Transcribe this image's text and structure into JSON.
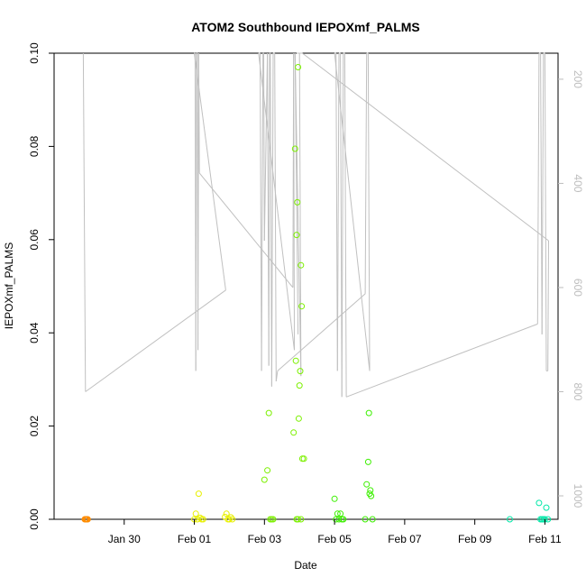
{
  "chart_data": {
    "type": "scatter",
    "title": "ATOM2 Southbound IEPOXmf_PALMS",
    "xlabel": "Date",
    "ylabel": "IEPOXmf_PALMS",
    "xlim": [
      "2017-01-28T00:00",
      "2017-02-11T09:00"
    ],
    "ylim": [
      0,
      0.1
    ],
    "x_ticks": [
      {
        "label": "Jan 30",
        "value": "2017-01-30T00:00"
      },
      {
        "label": "Feb 01",
        "value": "2017-02-01T00:00"
      },
      {
        "label": "Feb 03",
        "value": "2017-02-03T00:00"
      },
      {
        "label": "Feb 05",
        "value": "2017-02-05T00:00"
      },
      {
        "label": "Feb 07",
        "value": "2017-02-07T00:00"
      },
      {
        "label": "Feb 09",
        "value": "2017-02-09T00:00"
      },
      {
        "label": "Feb 11",
        "value": "2017-02-11T00:00"
      }
    ],
    "y_ticks": [
      {
        "label": "0.00",
        "value": 0
      },
      {
        "label": "0.02",
        "value": 0.02
      },
      {
        "label": "0.04",
        "value": 0.04
      },
      {
        "label": "0.06",
        "value": 0.06
      },
      {
        "label": "0.08",
        "value": 0.08
      },
      {
        "label": "0.10",
        "value": 0.1
      }
    ],
    "y2_ticks": [
      {
        "label": "200",
        "value": 200
      },
      {
        "label": "400",
        "value": 400
      },
      {
        "label": "600",
        "value": 600
      },
      {
        "label": "800",
        "value": 800
      },
      {
        "label": "1000",
        "value": 1000
      }
    ],
    "y2lim": [
      1045,
      150
    ],
    "grid": false,
    "series": [
      {
        "color": "#ff8c00",
        "points": [
          [
            "2017-01-28T21:00",
            0
          ],
          [
            "2017-01-28T21:30",
            0
          ],
          [
            "2017-01-28T22:00",
            0
          ],
          [
            "2017-01-28T22:30",
            0
          ],
          [
            "2017-01-28T23:00",
            0
          ]
        ]
      },
      {
        "color": "#e8f000",
        "points": [
          [
            "2017-02-01T00:00",
            0
          ],
          [
            "2017-02-01T01:00",
            0.0012
          ],
          [
            "2017-02-01T02:00",
            0
          ],
          [
            "2017-02-01T03:00",
            0.0055
          ],
          [
            "2017-02-01T04:00",
            0.0003
          ],
          [
            "2017-02-01T05:00",
            0
          ],
          [
            "2017-02-01T06:00",
            0
          ],
          [
            "2017-02-01T21:00",
            0.0005
          ],
          [
            "2017-02-01T22:00",
            0.0012
          ],
          [
            "2017-02-01T23:00",
            0
          ],
          [
            "2017-02-02T00:00",
            0
          ],
          [
            "2017-02-02T01:00",
            0.0004
          ],
          [
            "2017-02-02T02:00",
            0
          ]
        ]
      },
      {
        "color": "#7cf000",
        "points": [
          [
            "2017-02-03T00:00",
            0.0085
          ],
          [
            "2017-02-03T02:00",
            0.0105
          ],
          [
            "2017-02-03T03:00",
            0.0228
          ],
          [
            "2017-02-03T04:00",
            0
          ],
          [
            "2017-02-03T05:00",
            0
          ],
          [
            "2017-02-03T06:00",
            0
          ],
          [
            "2017-02-03T20:00",
            0.0186
          ],
          [
            "2017-02-03T21:00",
            0.0795
          ],
          [
            "2017-02-03T21:30",
            0.034
          ],
          [
            "2017-02-03T22:00",
            0.061
          ],
          [
            "2017-02-03T22:30",
            0.068
          ],
          [
            "2017-02-03T23:00",
            0.097
          ],
          [
            "2017-02-03T23:30",
            0.0216
          ],
          [
            "2017-02-04T00:00",
            0.0287
          ],
          [
            "2017-02-04T00:30",
            0.0318
          ],
          [
            "2017-02-04T01:00",
            0.0545
          ],
          [
            "2017-02-04T01:30",
            0.0457
          ],
          [
            "2017-02-04T02:00",
            0.013
          ],
          [
            "2017-02-04T03:00",
            0.013
          ],
          [
            "2017-02-03T22:00",
            0
          ],
          [
            "2017-02-03T23:00",
            0
          ],
          [
            "2017-02-04T01:00",
            0
          ]
        ]
      },
      {
        "color": "#3cf000",
        "points": [
          [
            "2017-02-05T00:00",
            0.0044
          ],
          [
            "2017-02-05T01:00",
            0
          ],
          [
            "2017-02-05T02:00",
            0.0012
          ],
          [
            "2017-02-05T03:00",
            0
          ],
          [
            "2017-02-05T04:00",
            0.0012
          ],
          [
            "2017-02-05T05:00",
            0
          ],
          [
            "2017-02-05T06:00",
            0
          ],
          [
            "2017-02-05T21:00",
            0
          ],
          [
            "2017-02-05T22:00",
            0.0075
          ],
          [
            "2017-02-05T23:00",
            0.0123
          ],
          [
            "2017-02-05T23:30",
            0.0228
          ],
          [
            "2017-02-06T00:00",
            0.0055
          ],
          [
            "2017-02-06T00:30",
            0.0062
          ],
          [
            "2017-02-06T01:00",
            0.005
          ],
          [
            "2017-02-06T02:00",
            0
          ]
        ]
      },
      {
        "color": "#00e8a8",
        "points": [
          [
            "2017-02-10T00:00",
            0
          ],
          [
            "2017-02-10T20:00",
            0.0035
          ],
          [
            "2017-02-10T21:00",
            0
          ],
          [
            "2017-02-10T22:00",
            0
          ],
          [
            "2017-02-10T23:00",
            0
          ],
          [
            "2017-02-11T00:00",
            0
          ],
          [
            "2017-02-11T01:00",
            0.0025
          ],
          [
            "2017-02-11T02:00",
            0
          ]
        ]
      }
    ],
    "pressure_trace": {
      "color": "#c0c0c0",
      "axis": "right",
      "points": [
        [
          "2017-01-28T20:00",
          150
        ],
        [
          "2017-01-28T21:30",
          800
        ],
        [
          "2017-02-01T21:30",
          605
        ],
        [
          "2017-02-01T00:00",
          150
        ],
        [
          "2017-02-01T00:30",
          150
        ],
        [
          "2017-02-01T01:00",
          760
        ],
        [
          "2017-02-01T01:30",
          150
        ],
        [
          "2017-02-01T02:00",
          150
        ],
        [
          "2017-02-01T02:30",
          720
        ],
        [
          "2017-02-01T03:00",
          150
        ],
        [
          "2017-02-01T03:30",
          380
        ],
        [
          "2017-02-03T19:30",
          600
        ],
        [
          "2017-02-03T20:00",
          150
        ],
        [
          "2017-02-03T20:30",
          720
        ],
        [
          "2017-02-02T20:00",
          150
        ],
        [
          "2017-02-02T21:00",
          150
        ],
        [
          "2017-02-02T22:00",
          760
        ],
        [
          "2017-02-02T23:00",
          150
        ],
        [
          "2017-02-02T23:30",
          150
        ],
        [
          "2017-02-03T00:00",
          510
        ],
        [
          "2017-02-03T02:00",
          150
        ],
        [
          "2017-02-03T03:00",
          750
        ],
        [
          "2017-02-03T03:30",
          150
        ],
        [
          "2017-02-03T04:00",
          150
        ],
        [
          "2017-02-03T05:00",
          790
        ],
        [
          "2017-02-03T06:00",
          150
        ],
        [
          "2017-02-03T07:00",
          150
        ],
        [
          "2017-02-03T08:00",
          780
        ],
        [
          "2017-02-03T09:00",
          760
        ],
        [
          "2017-02-05T21:00",
          612
        ],
        [
          "2017-02-05T22:00",
          150
        ],
        [
          "2017-02-05T23:00",
          150
        ],
        [
          "2017-02-06T00:00",
          760
        ],
        [
          "2017-02-05T00:00",
          150
        ],
        [
          "2017-02-05T01:00",
          150
        ],
        [
          "2017-02-05T02:00",
          760
        ],
        [
          "2017-02-05T03:00",
          150
        ],
        [
          "2017-02-05T04:00",
          150
        ],
        [
          "2017-02-05T05:00",
          810
        ],
        [
          "2017-02-05T06:00",
          150
        ],
        [
          "2017-02-05T07:00",
          150
        ],
        [
          "2017-02-05T08:00",
          810
        ],
        [
          "2017-02-10T19:00",
          670
        ],
        [
          "2017-02-10T20:00",
          150
        ],
        [
          "2017-02-10T21:00",
          150
        ],
        [
          "2017-02-10T22:00",
          690
        ],
        [
          "2017-02-10T23:00",
          150
        ],
        [
          "2017-02-11T00:00",
          150
        ],
        [
          "2017-02-11T01:00",
          760
        ],
        [
          "2017-02-11T02:00",
          760
        ],
        [
          "2017-02-11T02:30",
          510
        ],
        [
          "2017-02-04T02:00",
          150
        ],
        [
          "2017-02-03T22:00",
          150
        ],
        [
          "2017-02-04T00:00",
          150
        ],
        [
          "2017-02-04T01:00",
          770
        ],
        [
          "2017-02-03T21:00",
          150
        ],
        [
          "2017-02-03T23:00",
          690
        ]
      ]
    }
  }
}
